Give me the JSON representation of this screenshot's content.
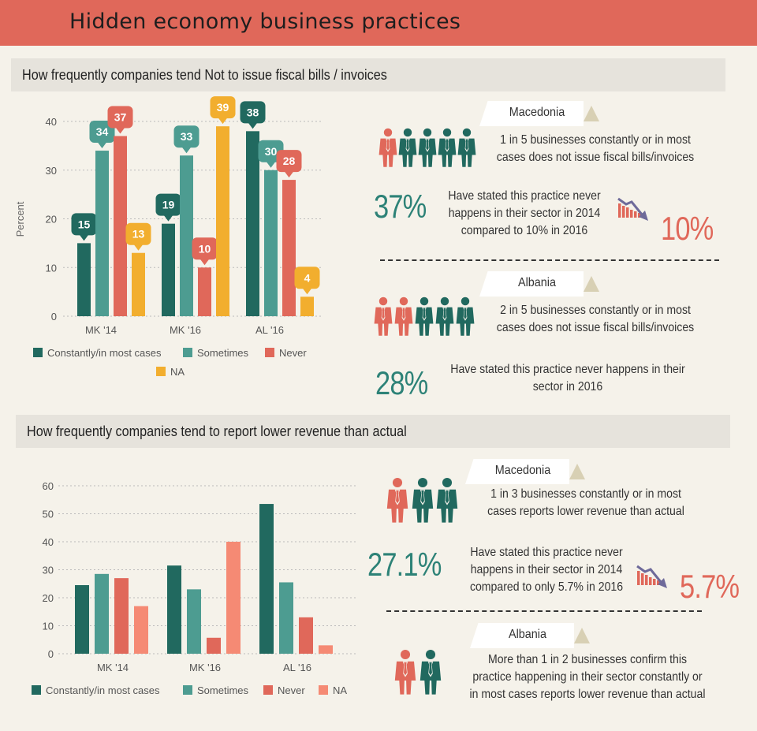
{
  "title": "Hidden economy business practices",
  "section1": {
    "heading": "How frequently companies tend Not to issue fiscal bills / invoices",
    "chart_data": {
      "type": "bar",
      "ylabel": "Percent",
      "ylim": [
        0,
        40
      ],
      "yticks": [
        0,
        10,
        20,
        30,
        40
      ],
      "categories": [
        "MK '14",
        "MK '16",
        "AL '16"
      ],
      "series": [
        {
          "name": "Constantly/in most cases",
          "color": "#21695f",
          "values": [
            15,
            19,
            38
          ]
        },
        {
          "name": "Sometimes",
          "color": "#4d9c91",
          "values": [
            34,
            33,
            30
          ]
        },
        {
          "name": "Never",
          "color": "#e0685a",
          "values": [
            37,
            10,
            28
          ]
        },
        {
          "name": "NA",
          "color": "#f2ae2e",
          "values": [
            13,
            39,
            4
          ]
        }
      ],
      "legend": "bottom",
      "grid": true,
      "data_labels": true
    },
    "macedonia": {
      "country": "Macedonia",
      "statement": [
        "1 in 5 businesses constantly or in most",
        "cases does not issue fiscal bills/invoices"
      ],
      "stat_big": "37%",
      "stat_text": [
        "Have stated this practice never",
        "happens in their sector in 2014",
        "compared to 10% in 2016"
      ],
      "stat_after": "10%"
    },
    "albania": {
      "country": "Albania",
      "statement": [
        "2 in 5 businesses constantly or in most",
        "cases does not issue fiscal bills/invoices"
      ],
      "stat_big": "28%",
      "stat_text": [
        "Have stated this practice never happens in their",
        "sector in 2016"
      ]
    }
  },
  "section2": {
    "heading": "How frequently companies tend to report lower revenue than actual",
    "chart_data": {
      "type": "bar",
      "ylabel": "",
      "ylim": [
        0,
        60
      ],
      "yticks": [
        0,
        10,
        20,
        30,
        40,
        50,
        60
      ],
      "categories": [
        "MK '14",
        "MK '16",
        "AL '16"
      ],
      "series": [
        {
          "name": "Constantly/in most cases",
          "color": "#21695f",
          "values": [
            24.5,
            31.5,
            53.5
          ]
        },
        {
          "name": "Sometimes",
          "color": "#4d9c91",
          "values": [
            28.5,
            23,
            25.5
          ]
        },
        {
          "name": "Never",
          "color": "#e0685a",
          "values": [
            27,
            5.7,
            13
          ]
        },
        {
          "name": "NA",
          "color": "#f58a74",
          "values": [
            17,
            40,
            3
          ]
        }
      ],
      "legend": "bottom",
      "grid": true,
      "data_labels": false
    },
    "macedonia": {
      "country": "Macedonia",
      "statement": [
        "1 in 3 businesses constantly or in most",
        "cases reports lower revenue than actual"
      ],
      "stat_big": "27.1%",
      "stat_text": [
        "Have stated this practice never",
        "happens in their sector in 2014",
        "compared to only 5.7% in 2016"
      ],
      "stat_after": "5.7%"
    },
    "albania": {
      "country": "Albania",
      "statement": [
        "More than 1 in 2 businesses confirm this",
        "practice happening in their sector constantly or",
        "in most cases reports lower revenue than actual"
      ]
    }
  },
  "icons": {
    "person": "businessman-icon",
    "trend": "down-trend-icon"
  },
  "colors": {
    "red": "#e0685a",
    "teal_dark": "#21695f",
    "teal": "#4d9c91",
    "amber": "#f2ae2e",
    "salmon": "#f58a74",
    "bg": "#f5f2ea"
  }
}
